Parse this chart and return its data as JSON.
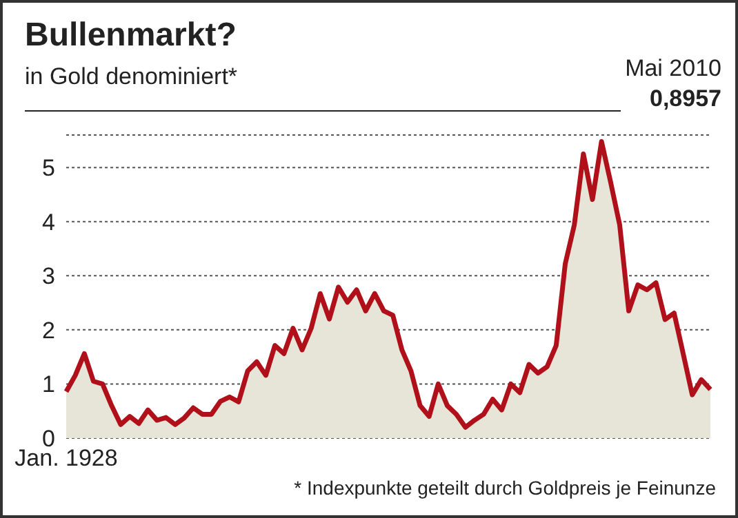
{
  "chart_data": {
    "type": "area",
    "title": "Bullenmarkt?",
    "subtitle": "in Gold denominiert*",
    "annotations": [
      "Mai 2010",
      "0,8957",
      "* Indexpunkte geteilt durch Goldpreis je Feinunze"
    ],
    "categories": [
      "Jan. 1928",
      null,
      null,
      null,
      null,
      null,
      null,
      null,
      null,
      null,
      null,
      null,
      null,
      null,
      null,
      null,
      null,
      null,
      null,
      null,
      null,
      null,
      null,
      null,
      null,
      null,
      null,
      null,
      null,
      null,
      null,
      null,
      null,
      null,
      null,
      null,
      null,
      null,
      null,
      null,
      null,
      null,
      null,
      null,
      null,
      null,
      null,
      null,
      null,
      null,
      null,
      null,
      null,
      null,
      null,
      null,
      null,
      null,
      null,
      null,
      null,
      null,
      null,
      null,
      null,
      null,
      null,
      null,
      null,
      null,
      null,
      null
    ],
    "series": [
      {
        "color": "#b0101a",
        "values": [
          0.86,
          1.16,
          1.56,
          1.05,
          1.0,
          0.6,
          0.25,
          0.4,
          0.27,
          0.52,
          0.33,
          0.38,
          0.25,
          0.37,
          0.56,
          0.44,
          0.44,
          0.68,
          0.76,
          0.67,
          1.24,
          1.41,
          1.16,
          1.71,
          1.56,
          2.03,
          1.63,
          2.03,
          2.67,
          2.2,
          2.79,
          2.51,
          2.74,
          2.35,
          2.67,
          2.35,
          2.27,
          1.63,
          1.24,
          0.6,
          0.4,
          1.0,
          0.6,
          0.44,
          0.2,
          0.33,
          0.44,
          0.72,
          0.52,
          1.0,
          0.84,
          1.36,
          1.2,
          1.32,
          1.71,
          3.22,
          3.94,
          5.25,
          4.41,
          5.48,
          4.73,
          3.94,
          2.35,
          2.83,
          2.74,
          2.87,
          2.19,
          2.31,
          1.56,
          0.8,
          1.08,
          0.9
        ]
      }
    ],
    "ylim": [
      0,
      5.6
    ],
    "yticks": [
      0,
      1,
      2,
      3,
      4,
      5
    ],
    "grid": "y"
  }
}
